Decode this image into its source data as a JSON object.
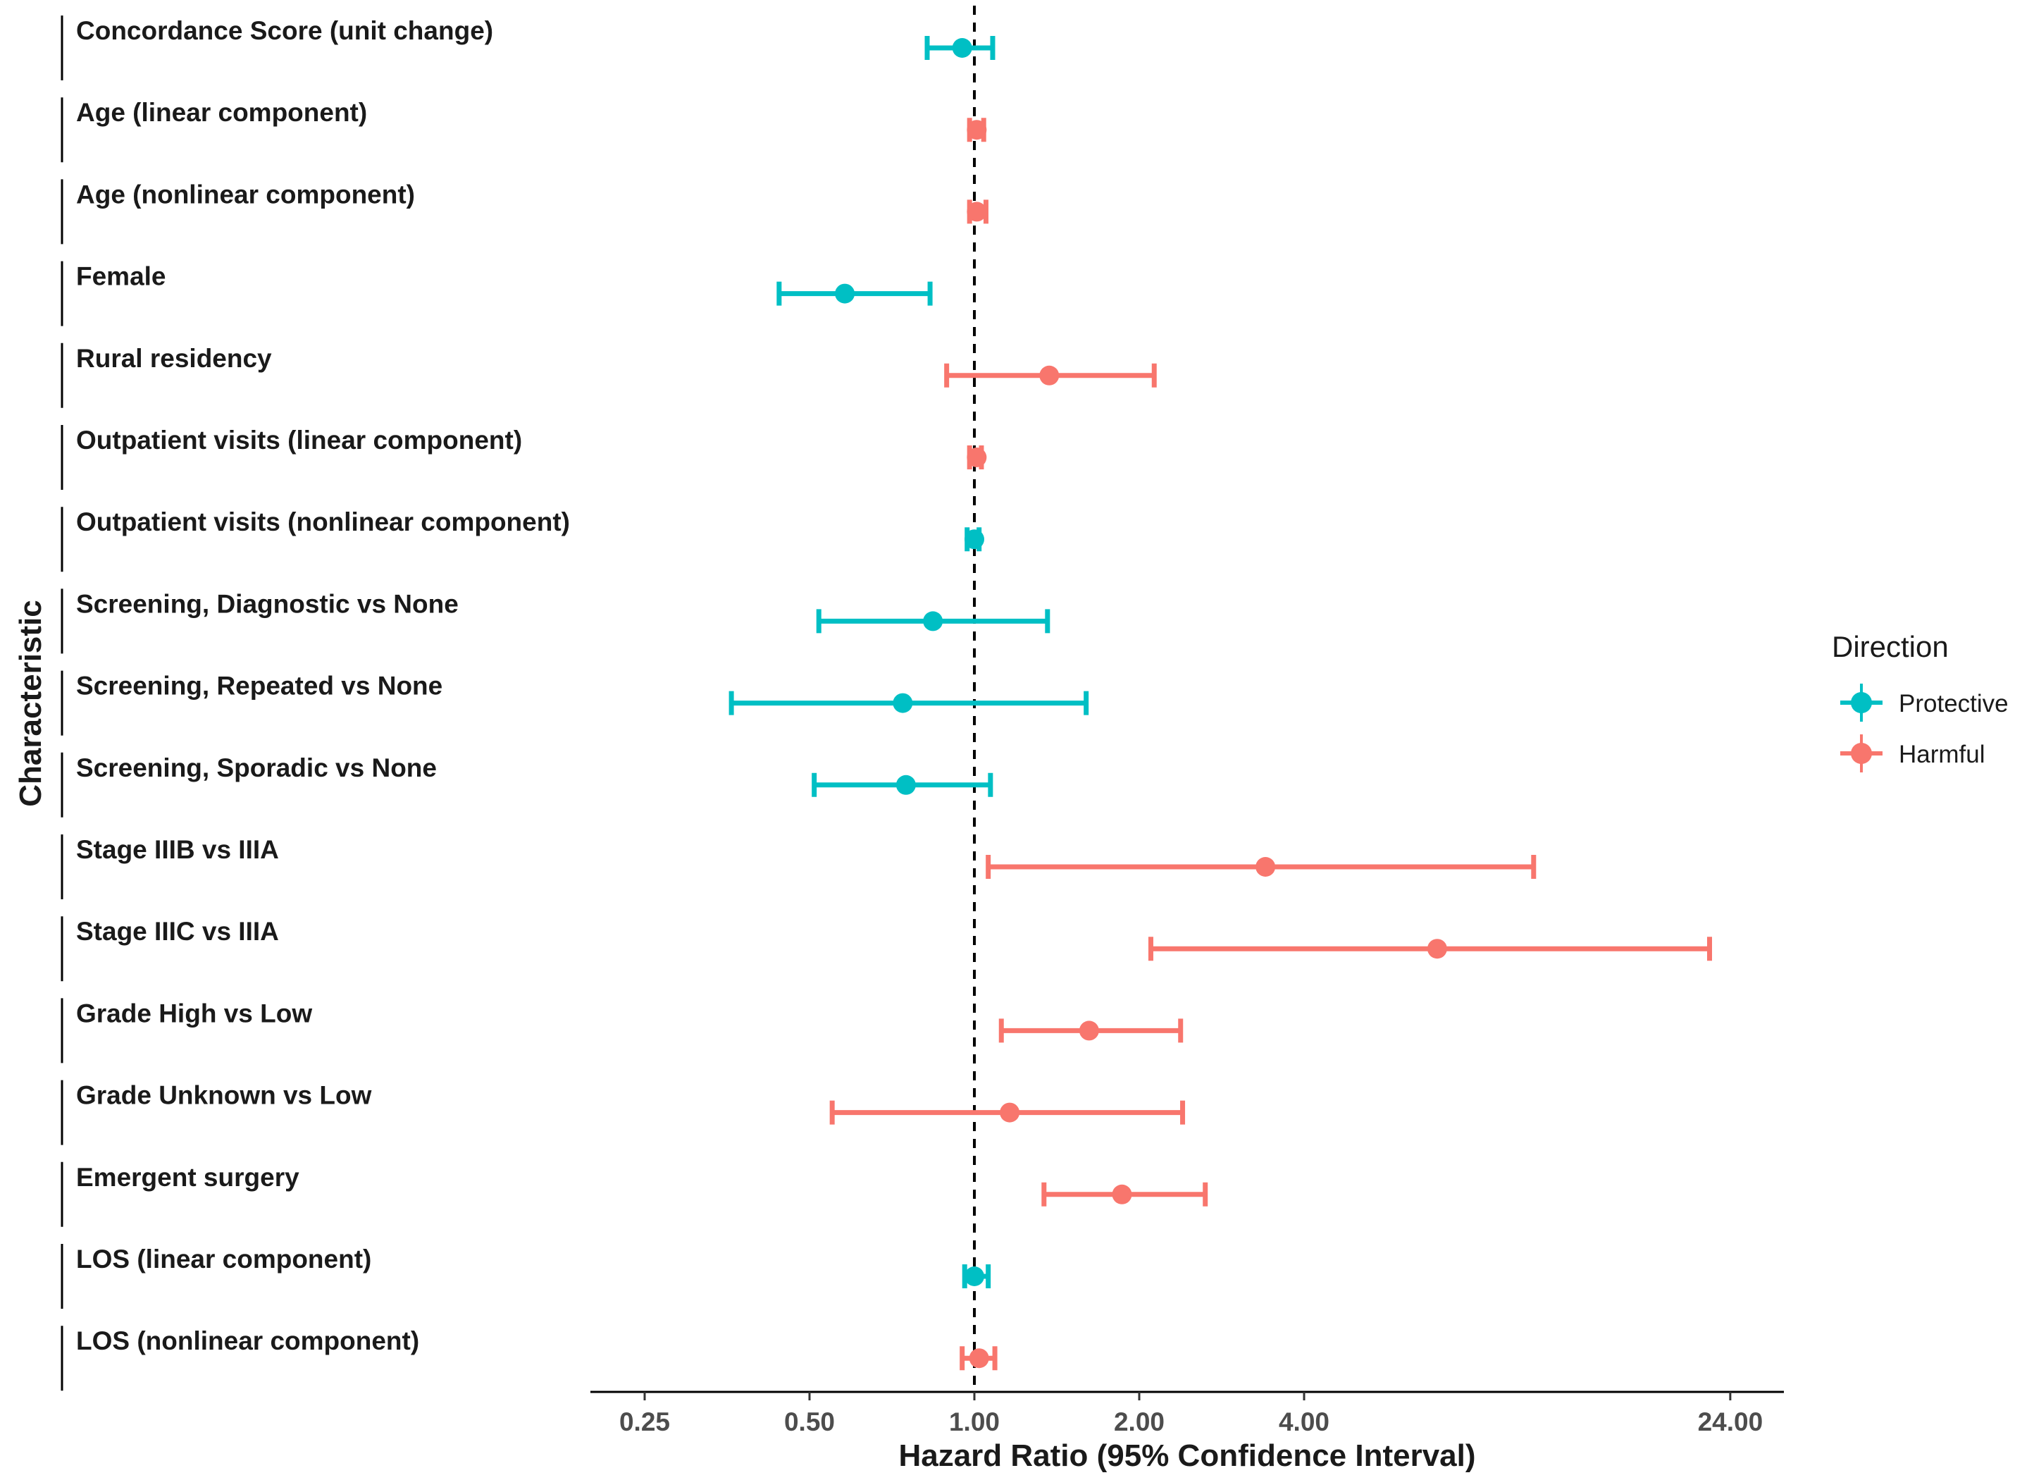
{
  "chart_data": {
    "type": "forest",
    "xlabel": "Hazard Ratio (95% Confidence Interval)",
    "ylabel": "Characteristic",
    "x_scale": "log2",
    "xlim": [
      0.2,
      30
    ],
    "x_ticks": [
      0.25,
      0.5,
      1.0,
      2.0,
      4.0,
      24.0
    ],
    "x_tick_labels": [
      "0.25",
      "0.50",
      "1.00",
      "2.00",
      "4.00",
      "24.00"
    ],
    "reference_line": 1.0,
    "legend": {
      "title": "Direction",
      "position": "right",
      "entries": [
        {
          "label": "Protective",
          "color": "#00BFC4"
        },
        {
          "label": "Harmful",
          "color": "#F8766D"
        }
      ]
    },
    "rows": [
      {
        "label": "Concordance Score (unit change)",
        "hr": 0.95,
        "lo": 0.82,
        "hi": 1.08,
        "direction": "Protective"
      },
      {
        "label": "Age (linear component)",
        "hr": 1.01,
        "lo": 0.98,
        "hi": 1.04,
        "direction": "Harmful"
      },
      {
        "label": "Age (nonlinear component)",
        "hr": 1.01,
        "lo": 0.98,
        "hi": 1.05,
        "direction": "Harmful"
      },
      {
        "label": "Female",
        "hr": 0.58,
        "lo": 0.44,
        "hi": 0.83,
        "direction": "Protective"
      },
      {
        "label": "Rural residency",
        "hr": 1.37,
        "lo": 0.89,
        "hi": 2.13,
        "direction": "Harmful"
      },
      {
        "label": "Outpatient visits (linear component)",
        "hr": 1.01,
        "lo": 0.98,
        "hi": 1.03,
        "direction": "Harmful"
      },
      {
        "label": "Outpatient visits (nonlinear component)",
        "hr": 1.0,
        "lo": 0.97,
        "hi": 1.02,
        "direction": "Protective"
      },
      {
        "label": "Screening, Diagnostic vs None",
        "hr": 0.84,
        "lo": 0.52,
        "hi": 1.36,
        "direction": "Protective"
      },
      {
        "label": "Screening, Repeated vs None",
        "hr": 0.74,
        "lo": 0.36,
        "hi": 1.6,
        "direction": "Protective"
      },
      {
        "label": "Screening, Sporadic vs None",
        "hr": 0.75,
        "lo": 0.51,
        "hi": 1.07,
        "direction": "Protective"
      },
      {
        "label": "Stage IIIB vs IIIA",
        "hr": 3.4,
        "lo": 1.06,
        "hi": 10.5,
        "direction": "Harmful"
      },
      {
        "label": "Stage IIIC vs IIIA",
        "hr": 7.0,
        "lo": 2.1,
        "hi": 22.0,
        "direction": "Harmful"
      },
      {
        "label": "Grade High vs Low",
        "hr": 1.62,
        "lo": 1.12,
        "hi": 2.38,
        "direction": "Harmful"
      },
      {
        "label": "Grade Unknown vs Low",
        "hr": 1.16,
        "lo": 0.55,
        "hi": 2.4,
        "direction": "Harmful"
      },
      {
        "label": "Emergent surgery",
        "hr": 1.86,
        "lo": 1.34,
        "hi": 2.64,
        "direction": "Harmful"
      },
      {
        "label": "LOS (linear component)",
        "hr": 1.0,
        "lo": 0.96,
        "hi": 1.06,
        "direction": "Protective"
      },
      {
        "label": "LOS (nonlinear component)",
        "hr": 1.02,
        "lo": 0.95,
        "hi": 1.09,
        "direction": "Harmful"
      }
    ]
  }
}
